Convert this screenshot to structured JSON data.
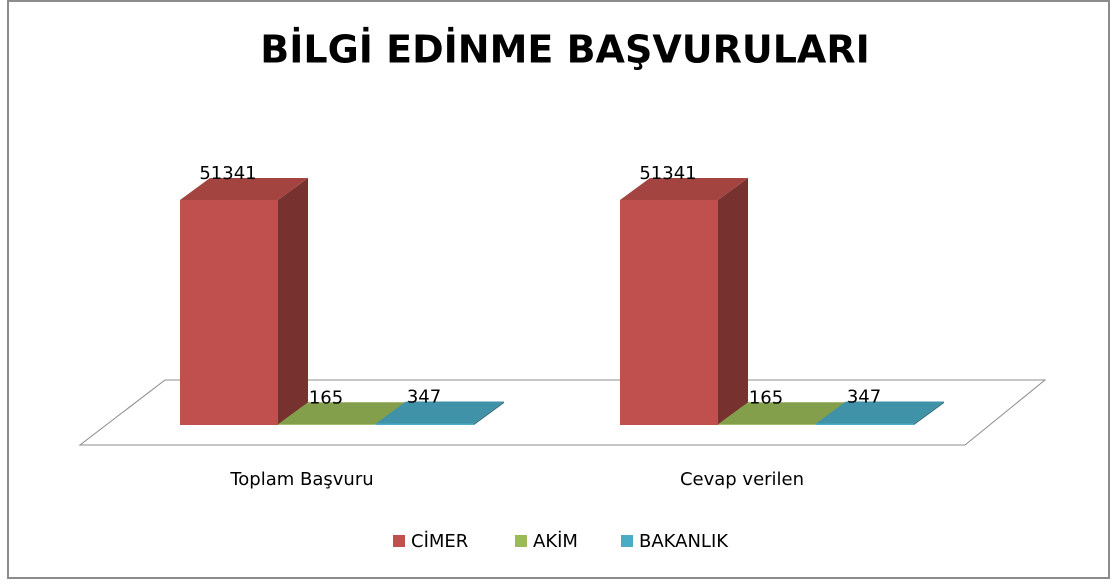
{
  "chart_data": {
    "type": "bar3d",
    "title": "BİLGİ EDİNME BAŞVURULARI",
    "categories": [
      "Toplam Başvuru",
      "Cevap verilen"
    ],
    "series": [
      {
        "name": "CİMER",
        "color": "#c0504d",
        "values": [
          51341,
          51341
        ]
      },
      {
        "name": "AKİM",
        "color": "#9bbb59",
        "values": [
          165,
          165
        ]
      },
      {
        "name": "BAKANLIK",
        "color": "#4bacc6",
        "values": [
          347,
          347
        ]
      }
    ],
    "legend": "bottom"
  }
}
